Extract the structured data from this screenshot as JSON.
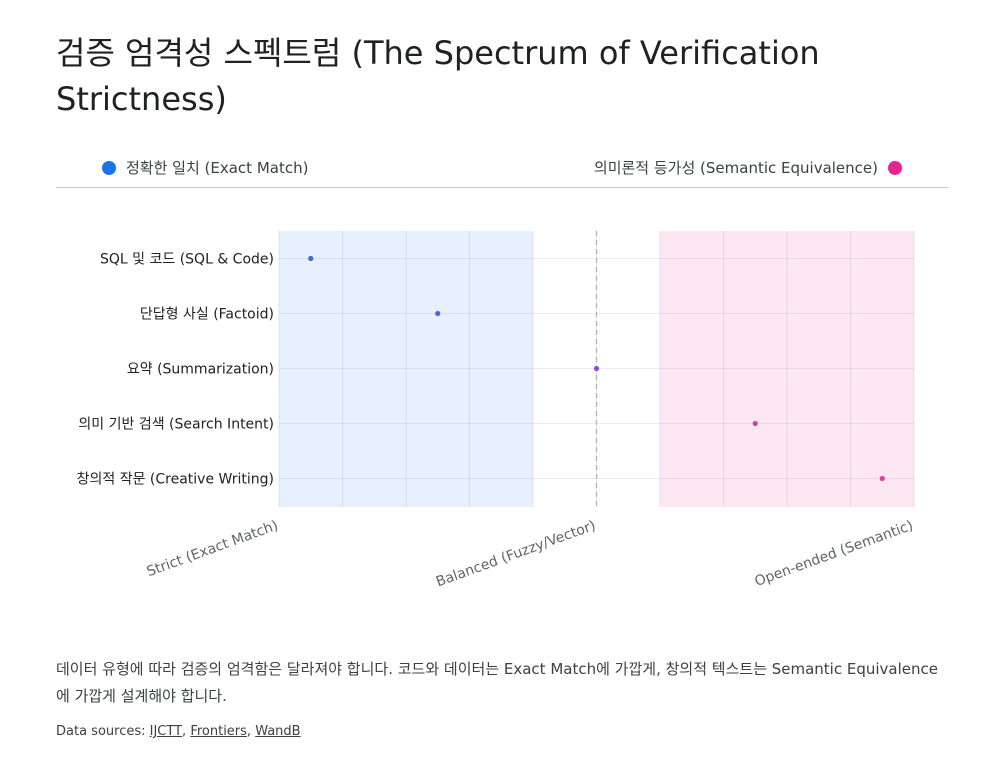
{
  "title": "검증 엄격성 스펙트럼 (The Spectrum of Verification Strictness)",
  "legend": {
    "left": {
      "label": "정확한 일치 (Exact Match)",
      "color": "#1a73e8"
    },
    "right": {
      "label": "의미론적 등가성 (Semantic Equivalence)",
      "color": "#e52592"
    }
  },
  "chart_data": {
    "type": "scatter",
    "categories": [
      "SQL 및 코드 (SQL & Code)",
      "단답형 사실 (Factoid)",
      "요약 (Summarization)",
      "의미 기반 검색 (Search Intent)",
      "창의적 작문 (Creative Writing)"
    ],
    "values": [
      0.5,
      2.5,
      5,
      7.5,
      9.5
    ],
    "point_colors": [
      "#3a6fd8",
      "#4f67cc",
      "#8e4ec6",
      "#c546ad",
      "#de3f94"
    ],
    "xlim": [
      0,
      10
    ],
    "x_tick_labels": [
      {
        "value": 0,
        "label": "Strict (Exact Match)"
      },
      {
        "value": 5,
        "label": "Balanced (Fuzzy/Vector)"
      },
      {
        "value": 10,
        "label": "Open-ended (Semantic)"
      }
    ],
    "shaded_regions": [
      {
        "from": 0,
        "to": 4,
        "color": "#e8f0fe"
      },
      {
        "from": 6,
        "to": 10,
        "color": "#fde7f3"
      }
    ],
    "reference_line": 5,
    "grid": true
  },
  "note": "데이터 유형에 따라 검증의 엄격함은 달라져야 합니다. 코드와 데이터는 Exact Match에 가깝게, 창의적 텍스트는 Semantic Equivalence에 가깝게 설계해야 합니다.",
  "sources": {
    "prefix": "Data sources: ",
    "links": [
      "IJCTT",
      "Frontiers",
      "WandB"
    ],
    "separator": ", "
  }
}
